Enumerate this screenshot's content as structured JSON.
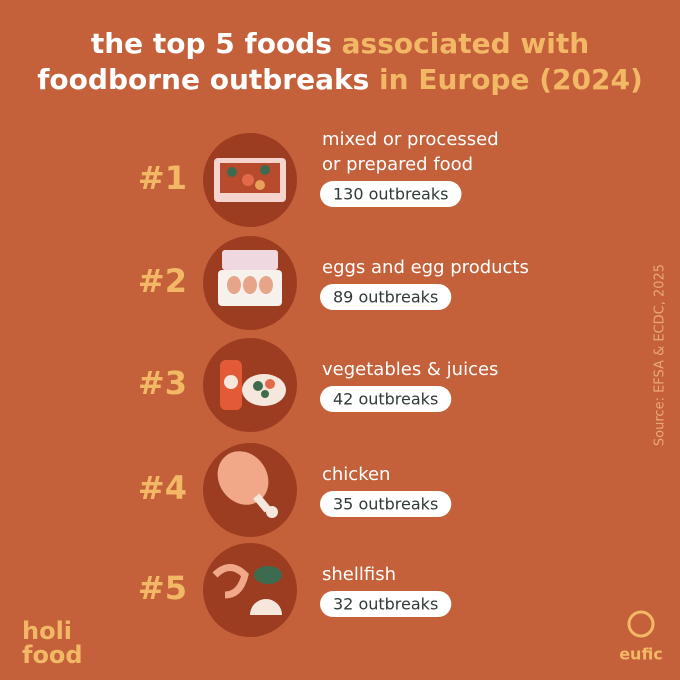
{
  "header": {
    "title_lines": [
      [
        {
          "text": "the top 5 foods ",
          "accent": false
        },
        {
          "text": "associated with",
          "accent": true
        }
      ],
      [
        {
          "text": "foodborne outbreaks",
          "accent": false
        },
        {
          "text": " in Europe (2024)",
          "accent": true
        }
      ]
    ]
  },
  "items": [
    {
      "rank": "#1",
      "label_lines": [
        "mixed or processed",
        "or prepared food"
      ],
      "badge": "130 outbreaks"
    },
    {
      "rank": "#2",
      "label_lines": [
        "eggs and egg products"
      ],
      "badge": "89 outbreaks"
    },
    {
      "rank": "#3",
      "label_lines": [
        "vegetables & juices"
      ],
      "badge": "42 outbreaks"
    },
    {
      "rank": "#4",
      "label_lines": [
        "chicken"
      ],
      "badge": "35 outbreaks"
    },
    {
      "rank": "#5",
      "label_lines": [
        "shellfish"
      ],
      "badge": "32 outbreaks"
    }
  ],
  "source": "Source: EFSA & ECDC, 2025",
  "logos": {
    "holi": "holi",
    "food": "food",
    "eufic": "eufic"
  }
}
